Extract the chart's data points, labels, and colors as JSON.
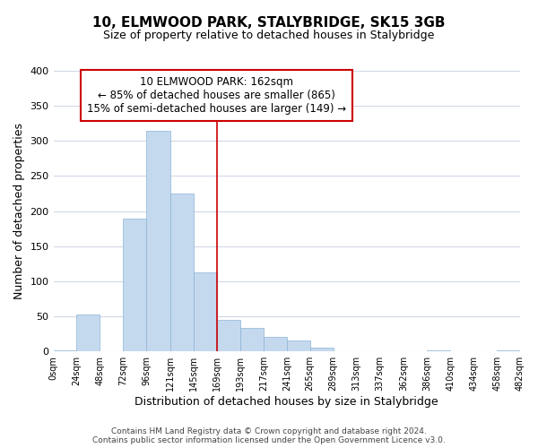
{
  "title": "10, ELMWOOD PARK, STALYBRIDGE, SK15 3GB",
  "subtitle": "Size of property relative to detached houses in Stalybridge",
  "xlabel": "Distribution of detached houses by size in Stalybridge",
  "ylabel": "Number of detached properties",
  "bar_color": "#c5d9ee",
  "bar_edge_color": "#8ab4d4",
  "background_color": "#ffffff",
  "grid_color": "#d0d8e8",
  "bins": [
    0,
    24,
    48,
    72,
    96,
    121,
    145,
    169,
    193,
    217,
    241,
    265,
    289,
    313,
    337,
    362,
    386,
    410,
    434,
    458,
    482
  ],
  "bin_labels": [
    "0sqm",
    "24sqm",
    "48sqm",
    "72sqm",
    "96sqm",
    "121sqm",
    "145sqm",
    "169sqm",
    "193sqm",
    "217sqm",
    "241sqm",
    "265sqm",
    "289sqm",
    "313sqm",
    "337sqm",
    "362sqm",
    "386sqm",
    "410sqm",
    "434sqm",
    "458sqm",
    "482sqm"
  ],
  "values": [
    2,
    53,
    0,
    189,
    315,
    225,
    113,
    45,
    33,
    21,
    15,
    5,
    0,
    0,
    0,
    0,
    2,
    0,
    0,
    2
  ],
  "ylim": [
    0,
    400
  ],
  "yticks": [
    0,
    50,
    100,
    150,
    200,
    250,
    300,
    350,
    400
  ],
  "property_line_x": 169,
  "property_line_color": "#cc0000",
  "annotation_title": "10 ELMWOOD PARK: 162sqm",
  "annotation_line1": "← 85% of detached houses are smaller (865)",
  "annotation_line2": "15% of semi-detached houses are larger (149) →",
  "footer1": "Contains HM Land Registry data © Crown copyright and database right 2024.",
  "footer2": "Contains public sector information licensed under the Open Government Licence v3.0."
}
